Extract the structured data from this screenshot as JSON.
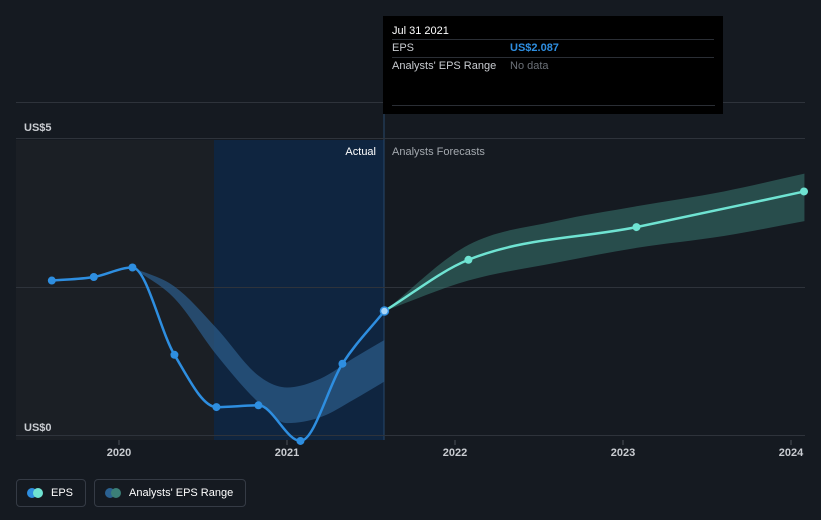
{
  "chart_data": {
    "type": "line",
    "title": "",
    "xlabel": "",
    "ylabel": "",
    "x_ticks": [
      "2020",
      "2021",
      "2022",
      "2023",
      "2024"
    ],
    "y_ticks": [
      "US$0",
      "US$5"
    ],
    "ylim": [
      0,
      5
    ],
    "section_labels": {
      "actual": "Actual",
      "forecast": "Analysts Forecasts"
    },
    "highlight_date": 2021.58,
    "series": [
      {
        "name": "EPS",
        "color": "#2e8ee0",
        "points": [
          {
            "x": 2019.6,
            "y": 2.6
          },
          {
            "x": 2019.85,
            "y": 2.66
          },
          {
            "x": 2020.08,
            "y": 2.82
          },
          {
            "x": 2020.33,
            "y": 1.35
          },
          {
            "x": 2020.58,
            "y": 0.47
          },
          {
            "x": 2020.83,
            "y": 0.5
          },
          {
            "x": 2021.08,
            "y": -0.1
          },
          {
            "x": 2021.33,
            "y": 1.2
          },
          {
            "x": 2021.58,
            "y": 2.087
          }
        ]
      },
      {
        "name": "EPS Forecast",
        "color": "#6fe3d2",
        "points": [
          {
            "x": 2021.58,
            "y": 2.087
          },
          {
            "x": 2022.08,
            "y": 2.95
          },
          {
            "x": 2023.08,
            "y": 3.5
          },
          {
            "x": 2024.08,
            "y": 4.1
          }
        ]
      }
    ],
    "range_past": {
      "name": "Analysts' EPS Range (past)",
      "x": [
        2020.08,
        2020.33,
        2020.58,
        2020.83,
        2021.0,
        2021.2,
        2021.4,
        2021.58
      ],
      "low": [
        2.82,
        2.3,
        1.35,
        0.55,
        0.2,
        0.3,
        0.6,
        0.9
      ],
      "high": [
        2.82,
        2.5,
        1.8,
        1.0,
        0.8,
        0.95,
        1.3,
        1.6
      ]
    },
    "range_forecast": {
      "name": "Analysts' EPS Range (forecast)",
      "x": [
        2021.58,
        2022.08,
        2022.6,
        2023.08,
        2023.6,
        2024.08
      ],
      "low": [
        2.087,
        2.6,
        2.9,
        3.15,
        3.35,
        3.6
      ],
      "high": [
        2.087,
        3.2,
        3.6,
        3.85,
        4.1,
        4.4
      ]
    }
  },
  "tooltip": {
    "date": "Jul 31 2021",
    "rows": [
      {
        "label": "EPS",
        "value": "US$2.087"
      },
      {
        "label": "Analysts' EPS Range",
        "value": "No data"
      }
    ]
  },
  "legend": {
    "items": [
      {
        "label": "EPS",
        "colors": [
          "#2e8ee0",
          "#6fe3d2"
        ]
      },
      {
        "label": "Analysts' EPS Range",
        "colors": [
          "#2b6191",
          "#3b7f77"
        ]
      }
    ]
  },
  "colors": {
    "background": "#151a21",
    "past_shade": "#1b1f25",
    "highlight": "#0f2540",
    "grid": "#2e333b",
    "range_past_fill": "#2b5a85",
    "range_forecast_fill": "#3b7f77"
  }
}
